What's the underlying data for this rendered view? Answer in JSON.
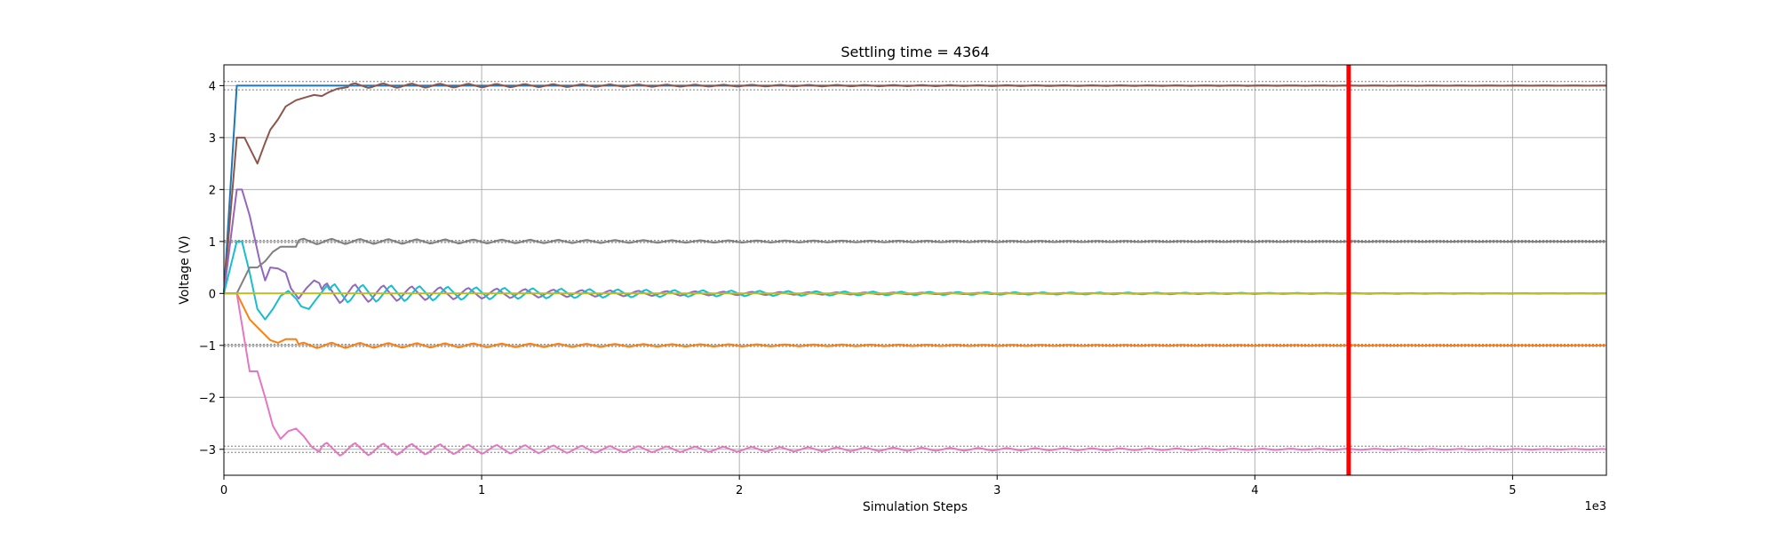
{
  "chart_data": {
    "type": "line",
    "title": "Settling time = 4364",
    "xlabel": "Simulation Steps",
    "ylabel": "Voltage (V)",
    "x_offset_label": "1e3",
    "xlim": [
      0,
      5364
    ],
    "ylim": [
      -3.5,
      4.4
    ],
    "x_ticks": [
      0,
      1000,
      2000,
      3000,
      4000,
      5000
    ],
    "x_tick_labels": [
      "0",
      "1",
      "2",
      "3",
      "4",
      "5"
    ],
    "y_ticks": [
      -3,
      -2,
      -1,
      0,
      1,
      2,
      3,
      4
    ],
    "y_tick_labels": [
      "−3",
      "−2",
      "−1",
      "0",
      "1",
      "2",
      "3",
      "4"
    ],
    "grid": true,
    "settling_time": 4364,
    "settling_line_color": "#ff0000",
    "tolerance_bands": [
      [
        3.92,
        4.08
      ],
      [
        0.98,
        1.02
      ],
      [
        -0.98,
        -1.02
      ],
      [
        -2.94,
        -3.06
      ]
    ],
    "tolerance_color": "#7f7f7f",
    "series": [
      {
        "color": "#1f77b4",
        "final": 4,
        "kind": "step",
        "points": [
          [
            0,
            0
          ],
          [
            50,
            4
          ],
          [
            5364,
            4
          ]
        ]
      },
      {
        "color": "#8c564b",
        "final": 4,
        "kind": "osc",
        "points": [
          [
            0,
            0
          ],
          [
            50,
            3
          ],
          [
            80,
            3
          ],
          [
            110,
            2.7
          ],
          [
            130,
            2.5
          ],
          [
            160,
            2.9
          ],
          [
            180,
            3.15
          ],
          [
            210,
            3.35
          ],
          [
            240,
            3.6
          ],
          [
            280,
            3.72
          ],
          [
            320,
            3.78
          ],
          [
            350,
            3.82
          ],
          [
            380,
            3.8
          ],
          [
            410,
            3.88
          ],
          [
            440,
            3.94
          ],
          [
            480,
            3.97
          ]
        ],
        "amp": 0.05,
        "period": 110,
        "decay": 1500
      },
      {
        "color": "#9467bd",
        "final": 0,
        "kind": "osc",
        "points": [
          [
            0,
            0
          ],
          [
            50,
            2
          ],
          [
            70,
            2
          ],
          [
            100,
            1.5
          ],
          [
            140,
            0.6
          ],
          [
            160,
            0.25
          ],
          [
            180,
            0.5
          ],
          [
            210,
            0.48
          ],
          [
            240,
            0.4
          ],
          [
            260,
            0.1
          ],
          [
            290,
            -0.1
          ],
          [
            320,
            0.1
          ],
          [
            350,
            0.25
          ],
          [
            370,
            0.2
          ]
        ],
        "amp": 0.22,
        "period": 110,
        "decay": 900
      },
      {
        "color": "#17becf",
        "final": 0,
        "kind": "osc",
        "points": [
          [
            0,
            0
          ],
          [
            50,
            1
          ],
          [
            70,
            1
          ],
          [
            100,
            0.4
          ],
          [
            130,
            -0.3
          ],
          [
            160,
            -0.5
          ],
          [
            190,
            -0.3
          ],
          [
            220,
            -0.05
          ],
          [
            250,
            0.05
          ],
          [
            280,
            -0.1
          ],
          [
            300,
            -0.25
          ],
          [
            330,
            -0.3
          ],
          [
            360,
            -0.1
          ],
          [
            400,
            0.15
          ]
        ],
        "amp": 0.2,
        "period": 110,
        "decay": 1300
      },
      {
        "color": "#7f7f7f",
        "final": 1,
        "kind": "osc",
        "points": [
          [
            0,
            0
          ],
          [
            50,
            0
          ],
          [
            100,
            0.5
          ],
          [
            130,
            0.5
          ],
          [
            160,
            0.62
          ],
          [
            190,
            0.8
          ],
          [
            220,
            0.9
          ],
          [
            250,
            0.9
          ],
          [
            280,
            0.9
          ]
        ],
        "amp": 0.06,
        "period": 110,
        "decay": 1800
      },
      {
        "color": "#ff7f0e",
        "final": -1,
        "kind": "osc",
        "points": [
          [
            0,
            0
          ],
          [
            50,
            0
          ],
          [
            100,
            -0.5
          ],
          [
            140,
            -0.7
          ],
          [
            180,
            -0.9
          ],
          [
            210,
            -0.95
          ],
          [
            240,
            -0.88
          ],
          [
            280,
            -0.88
          ]
        ],
        "amp": 0.06,
        "period": 110,
        "decay": 1800
      },
      {
        "color": "#e377c2",
        "final": -3,
        "kind": "osc",
        "points": [
          [
            0,
            0
          ],
          [
            50,
            0
          ],
          [
            100,
            -1.5
          ],
          [
            130,
            -1.5
          ],
          [
            160,
            -2.0
          ],
          [
            190,
            -2.55
          ],
          [
            220,
            -2.8
          ],
          [
            250,
            -2.65
          ],
          [
            280,
            -2.6
          ],
          [
            310,
            -2.75
          ],
          [
            340,
            -2.95
          ],
          [
            370,
            -3.05
          ]
        ],
        "amp": 0.14,
        "period": 110,
        "decay": 1600
      },
      {
        "color": "#bcbd22",
        "final": 0,
        "kind": "step",
        "points": [
          [
            0,
            0
          ],
          [
            5364,
            0
          ]
        ]
      }
    ]
  }
}
